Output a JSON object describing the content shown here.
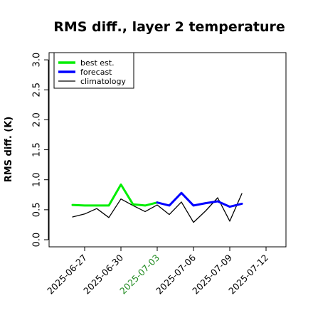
{
  "chart_data": {
    "type": "line",
    "title": "RMS diff., layer 2 temperature",
    "xlabel": "",
    "ylabel": "RMS diff. (K)",
    "ylim": [
      0,
      3.0
    ],
    "yticks": [
      "0.0",
      "0.5",
      "1.0",
      "1.5",
      "2.0",
      "2.5",
      "3.0"
    ],
    "xtick_labels": [
      {
        "label": "2025-06-27",
        "day": 0,
        "color": "#000000"
      },
      {
        "label": "2025-06-30",
        "day": 3,
        "color": "#000000"
      },
      {
        "label": "2025-07-03",
        "day": 6,
        "color": "#228B22"
      },
      {
        "label": "2025-07-06",
        "day": 9,
        "color": "#000000"
      },
      {
        "label": "2025-07-09",
        "day": 12,
        "color": "#000000"
      },
      {
        "label": "2025-07-12",
        "day": 15,
        "color": "#000000"
      }
    ],
    "legend": {
      "position": "top-left"
    },
    "grid": false,
    "series": [
      {
        "name": "best est.",
        "color": "#00ee00",
        "width": 3,
        "x": [
          "2025-06-26",
          "2025-06-27",
          "2025-06-28",
          "2025-06-29",
          "2025-06-30",
          "2025-07-01",
          "2025-07-02",
          "2025-07-03"
        ],
        "values": [
          0.58,
          0.57,
          0.57,
          0.57,
          0.92,
          0.59,
          0.57,
          0.62
        ]
      },
      {
        "name": "forecast",
        "color": "#0000ff",
        "width": 3,
        "x": [
          "2025-07-03",
          "2025-07-04",
          "2025-07-05",
          "2025-07-06",
          "2025-07-07",
          "2025-07-08",
          "2025-07-09",
          "2025-07-10"
        ],
        "values": [
          0.62,
          0.57,
          0.78,
          0.57,
          0.61,
          0.64,
          0.55,
          0.6
        ]
      },
      {
        "name": "climatology",
        "color": "#000000",
        "width": 1.3,
        "x": [
          "2025-06-26",
          "2025-06-27",
          "2025-06-28",
          "2025-06-29",
          "2025-06-30",
          "2025-07-01",
          "2025-07-02",
          "2025-07-03",
          "2025-07-04",
          "2025-07-05",
          "2025-07-06",
          "2025-07-07",
          "2025-07-08",
          "2025-07-09",
          "2025-07-10"
        ],
        "values": [
          0.38,
          0.43,
          0.52,
          0.37,
          0.68,
          0.57,
          0.47,
          0.58,
          0.42,
          0.63,
          0.29,
          0.48,
          0.7,
          0.31,
          0.77
        ]
      }
    ]
  }
}
